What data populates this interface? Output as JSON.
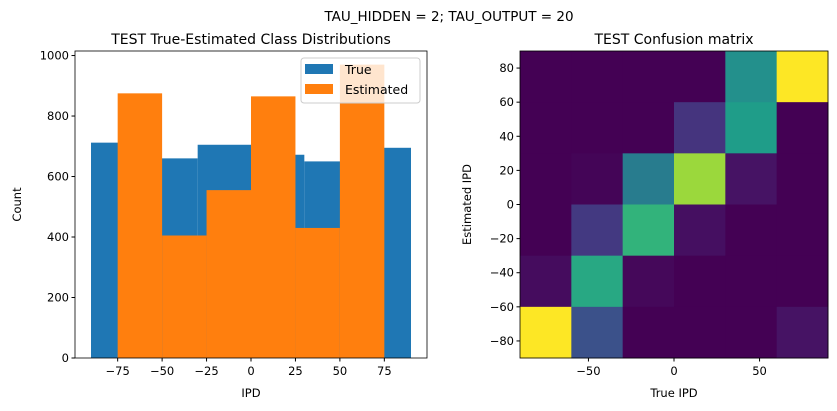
{
  "suptitle": "TAU_HIDDEN = 2; TAU_OUTPUT = 20",
  "chart_data": [
    {
      "type": "bar",
      "title": "TEST True-Estimated Class Distributions",
      "xlabel": "IPD",
      "ylabel": "Count",
      "xlim": [
        -99,
        99
      ],
      "ylim": [
        0,
        1015
      ],
      "xticks": [
        -75,
        -50,
        -25,
        0,
        25,
        50,
        75
      ],
      "xtick_labels": [
        "−75",
        "−50",
        "−25",
        "0",
        "25",
        "50",
        "75"
      ],
      "yticks": [
        0,
        200,
        400,
        600,
        800,
        1000
      ],
      "ytick_labels": [
        "0",
        "200",
        "400",
        "600",
        "800",
        "1000"
      ],
      "legend": {
        "placement": "top-right",
        "entries": [
          "True",
          "Estimated"
        ]
      },
      "series": [
        {
          "name": "True",
          "color": "#1f77b4",
          "bin_edges": [
            -90,
            -60,
            -30,
            0,
            30,
            60,
            90
          ],
          "values": [
            712,
            660,
            705,
            672,
            650,
            695
          ]
        },
        {
          "name": "Estimated",
          "color": "#ff7f0e",
          "bin_edges": [
            -75,
            -50,
            -25,
            0,
            25,
            50,
            75
          ],
          "values": [
            875,
            405,
            555,
            865,
            430,
            970
          ]
        }
      ]
    },
    {
      "type": "heatmap",
      "title": "TEST Confusion matrix",
      "xlabel": "True IPD",
      "ylabel": "Estimated IPD",
      "xlim": [
        -90,
        90
      ],
      "ylim": [
        -90,
        90
      ],
      "xticks": [
        -50,
        0,
        50
      ],
      "xtick_labels": [
        "−50",
        "0",
        "50"
      ],
      "yticks": [
        -80,
        -60,
        -40,
        -20,
        0,
        20,
        40,
        60,
        80
      ],
      "ytick_labels": [
        "−80",
        "−60",
        "−40",
        "−20",
        "0",
        "20",
        "40",
        "60",
        "80"
      ],
      "colormap": "viridis",
      "row_order": "top-to-bottom (estimated 75 to -75)",
      "values": [
        [
          0,
          0,
          0,
          0,
          0.5,
          1
        ],
        [
          0,
          0,
          0,
          0.15,
          0.55,
          0
        ],
        [
          0,
          0.01,
          0.42,
          0.85,
          0.05,
          0
        ],
        [
          0,
          0.17,
          0.65,
          0.04,
          0,
          0
        ],
        [
          0.03,
          0.6,
          0.02,
          0,
          0,
          0
        ],
        [
          1,
          0.25,
          0,
          0,
          0,
          0.05
        ]
      ]
    }
  ]
}
